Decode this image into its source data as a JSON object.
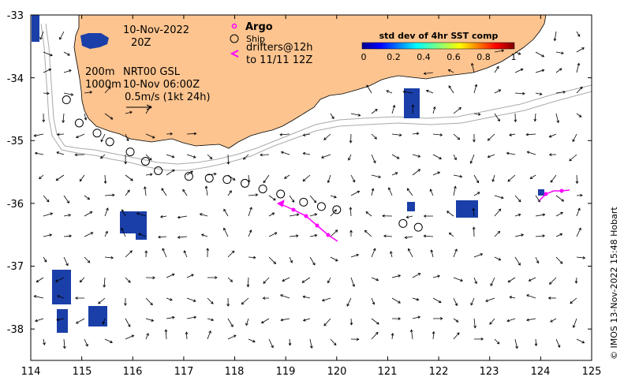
{
  "map": {
    "x_ticks": [
      "114",
      "115",
      "116",
      "117",
      "118",
      "119",
      "120",
      "121",
      "122",
      "123",
      "124",
      "125"
    ],
    "y_ticks": [
      "-33",
      "-34",
      "-35",
      "-36",
      "-37",
      "-38"
    ],
    "lon_range": [
      114,
      125
    ],
    "lat_range": [
      -38.5,
      -33
    ]
  },
  "header": {
    "date": "10-Nov-2022",
    "time": "20Z",
    "depth_200": "200m",
    "depth_1000": "1000m",
    "product": "NRT00 GSL",
    "product_time": "10-Nov 06:00Z",
    "scale_vector": "0.5m/s (1kt 24h)"
  },
  "legend": {
    "argo": "Argo",
    "ship": "Ship",
    "drifters_line1": "drifters@12h",
    "drifters_line2": "to 11/11 12Z",
    "argo_color": "#ff00ff",
    "drifter_color": "#ff00ff"
  },
  "colorbar": {
    "title": "std dev of 4hr SST comp",
    "labels": [
      "0",
      "0.2",
      "0.4",
      "0.6",
      "0.8",
      "1"
    ]
  },
  "credit": "© IMOS 13-Nov-2022 15:48 Hobart",
  "colors": {
    "land": "#fdc48f",
    "ocean": "#ffffff",
    "contour": "#aaaaaa",
    "sst_patch": "#1a3fa8"
  },
  "ship_positions": [
    {
      "lon": 114.7,
      "lat": -34.35
    },
    {
      "lon": 114.95,
      "lat": -34.72
    },
    {
      "lon": 115.3,
      "lat": -34.88
    },
    {
      "lon": 115.55,
      "lat": -35.02
    },
    {
      "lon": 115.95,
      "lat": -35.18
    },
    {
      "lon": 116.25,
      "lat": -35.33
    },
    {
      "lon": 116.5,
      "lat": -35.48
    },
    {
      "lon": 117.1,
      "lat": -35.57
    },
    {
      "lon": 117.5,
      "lat": -35.6
    },
    {
      "lon": 117.85,
      "lat": -35.62
    },
    {
      "lon": 118.2,
      "lat": -35.68
    },
    {
      "lon": 118.55,
      "lat": -35.77
    },
    {
      "lon": 118.9,
      "lat": -35.85
    },
    {
      "lon": 119.35,
      "lat": -35.98
    },
    {
      "lon": 119.7,
      "lat": -36.05
    },
    {
      "lon": 120.0,
      "lat": -36.1
    },
    {
      "lon": 121.3,
      "lat": -36.32
    },
    {
      "lon": 121.6,
      "lat": -36.38
    }
  ]
}
